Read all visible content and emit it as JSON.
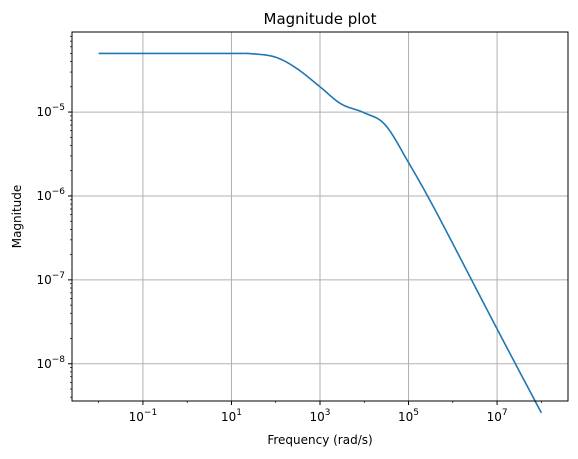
{
  "chart_data": {
    "type": "line",
    "title": "Magnitude plot",
    "xlabel": "Frequency (rad/s)",
    "ylabel": "Magnitude",
    "xscale": "log",
    "yscale": "log",
    "grid": true,
    "x_ticks": [
      {
        "base": "10",
        "exp": "−1",
        "value": 0.1
      },
      {
        "base": "10",
        "exp": "1",
        "value": 10
      },
      {
        "base": "10",
        "exp": "3",
        "value": 1000
      },
      {
        "base": "10",
        "exp": "5",
        "value": 100000
      },
      {
        "base": "10",
        "exp": "7",
        "value": 10000000
      }
    ],
    "y_ticks": [
      {
        "base": "10",
        "exp": "−5",
        "value": 1e-05
      },
      {
        "base": "10",
        "exp": "−6",
        "value": 1e-06
      },
      {
        "base": "10",
        "exp": "−7",
        "value": 1e-07
      },
      {
        "base": "10",
        "exp": "−8",
        "value": 1e-08
      }
    ],
    "xlim": [
      0.0025,
      400000000
    ],
    "ylim": [
      3.6e-09,
      9e-05
    ],
    "series": [
      {
        "color": "#1f77b4",
        "x": [
          0.01,
          0.1,
          1,
          10,
          30,
          100,
          300,
          1000,
          3000,
          10000,
          30000,
          100000,
          300000,
          1000000,
          10000000,
          100000000
        ],
        "y": [
          5e-05,
          5e-05,
          5e-05,
          5e-05,
          4.95e-05,
          4.5e-05,
          3.3e-05,
          2e-05,
          1.25e-05,
          9.8e-06,
          7e-06,
          2.5e-06,
          9e-07,
          2.7e-07,
          2.6e-08,
          2.6e-09
        ]
      }
    ]
  }
}
